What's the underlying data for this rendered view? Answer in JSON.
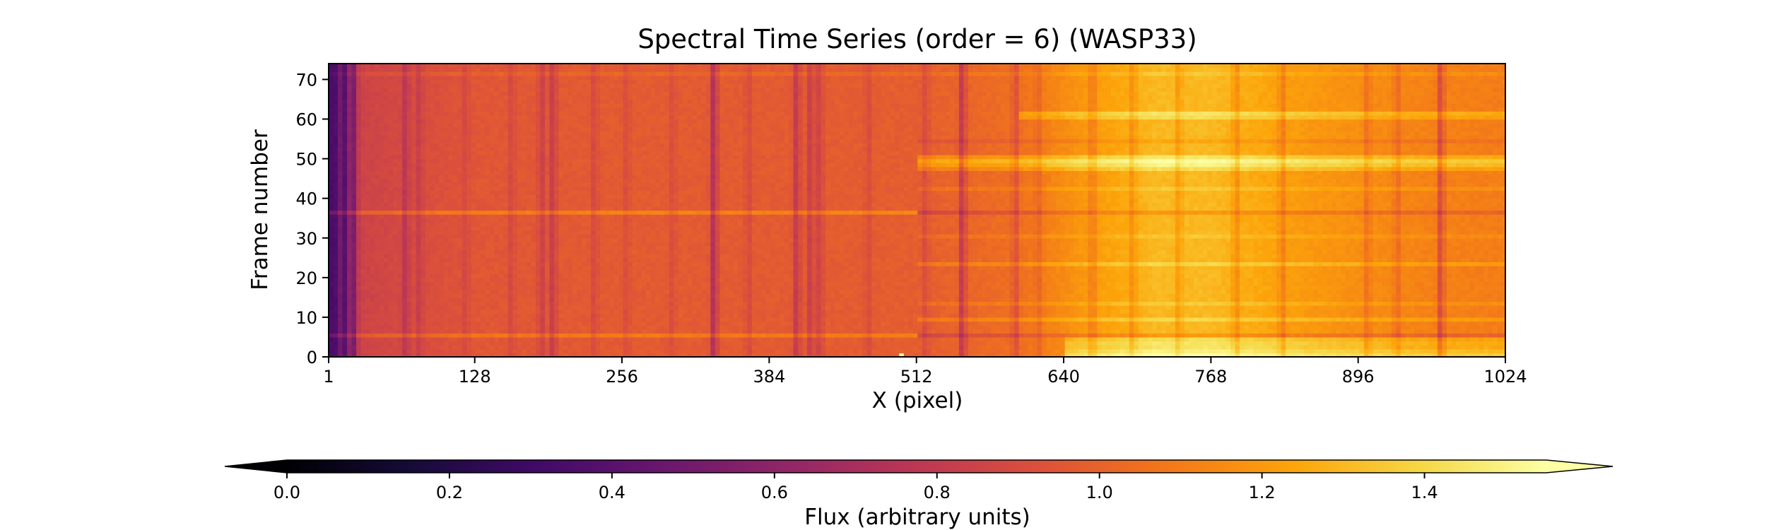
{
  "chart_data": {
    "type": "heatmap",
    "title": "Spectral Time Series (order = 6) (WASP33)",
    "xlabel": "X (pixel)",
    "ylabel": "Frame number",
    "xlim": [
      1,
      1024
    ],
    "ylim": [
      0,
      74
    ],
    "x_ticks": [
      1,
      128,
      256,
      384,
      512,
      640,
      768,
      896,
      1024
    ],
    "y_ticks": [
      0,
      10,
      20,
      30,
      40,
      50,
      60,
      70
    ],
    "colormap": "inferno",
    "colorbar": {
      "label": "Flux (arbitrary units)",
      "range": [
        0.0,
        1.55
      ],
      "ticks": [
        0.0,
        0.2,
        0.4,
        0.6,
        0.8,
        1.0,
        1.2,
        1.4
      ],
      "extend": "both",
      "orientation": "horizontal",
      "placement": "bottom"
    },
    "baseline_flux_profile": [
      {
        "x": 1,
        "flux": 0.55
      },
      {
        "x": 10,
        "flux": 0.6
      },
      {
        "x": 30,
        "flux": 0.85
      },
      {
        "x": 128,
        "flux": 0.95
      },
      {
        "x": 256,
        "flux": 0.97
      },
      {
        "x": 384,
        "flux": 0.97
      },
      {
        "x": 512,
        "flux": 0.98
      },
      {
        "x": 600,
        "flux": 1.05
      },
      {
        "x": 660,
        "flux": 1.2
      },
      {
        "x": 720,
        "flux": 1.3
      },
      {
        "x": 768,
        "flux": 1.3
      },
      {
        "x": 850,
        "flux": 1.2
      },
      {
        "x": 950,
        "flux": 1.12
      },
      {
        "x": 1024,
        "flux": 1.1
      }
    ],
    "absorption_lines": [
      {
        "x": 5,
        "depth": 0.35
      },
      {
        "x": 14,
        "depth": 0.3
      },
      {
        "x": 22,
        "depth": 0.25
      },
      {
        "x": 68,
        "depth": 0.12
      },
      {
        "x": 80,
        "depth": 0.08
      },
      {
        "x": 120,
        "depth": 0.06
      },
      {
        "x": 160,
        "depth": 0.07
      },
      {
        "x": 186,
        "depth": 0.12
      },
      {
        "x": 196,
        "depth": 0.15
      },
      {
        "x": 232,
        "depth": 0.08
      },
      {
        "x": 260,
        "depth": 0.06
      },
      {
        "x": 300,
        "depth": 0.06
      },
      {
        "x": 336,
        "depth": 0.25
      },
      {
        "x": 366,
        "depth": 0.07
      },
      {
        "x": 408,
        "depth": 0.18
      },
      {
        "x": 420,
        "depth": 0.15
      },
      {
        "x": 428,
        "depth": 0.12
      },
      {
        "x": 470,
        "depth": 0.07
      },
      {
        "x": 520,
        "depth": 0.08
      },
      {
        "x": 552,
        "depth": 0.22
      },
      {
        "x": 598,
        "depth": 0.12
      },
      {
        "x": 618,
        "depth": 0.08
      },
      {
        "x": 665,
        "depth": 0.12
      },
      {
        "x": 700,
        "depth": 0.1
      },
      {
        "x": 740,
        "depth": 0.1
      },
      {
        "x": 790,
        "depth": 0.12
      },
      {
        "x": 830,
        "depth": 0.12
      },
      {
        "x": 904,
        "depth": 0.1
      },
      {
        "x": 930,
        "depth": 0.1
      },
      {
        "x": 968,
        "depth": 0.22
      }
    ],
    "frame_variations": [
      {
        "frame": 1,
        "x_from": 640,
        "x_to": 1024,
        "delta": 0.25
      },
      {
        "frame": 2,
        "x_from": 640,
        "x_to": 1024,
        "delta": 0.2
      },
      {
        "frame": 3,
        "x_from": 640,
        "x_to": 1024,
        "delta": 0.15
      },
      {
        "frame": 4,
        "x_from": 640,
        "x_to": 1024,
        "delta": 0.15
      },
      {
        "frame": 5,
        "x_from": 640,
        "x_to": 1024,
        "delta": 0.12
      },
      {
        "frame": 6,
        "x_from": 1,
        "x_to": 512,
        "delta": 0.12
      },
      {
        "frame": 6,
        "x_from": 512,
        "x_to": 1024,
        "delta": -0.1
      },
      {
        "frame": 10,
        "x_from": 512,
        "x_to": 1024,
        "delta": 0.1
      },
      {
        "frame": 14,
        "x_from": 512,
        "x_to": 1024,
        "delta": 0.06
      },
      {
        "frame": 24,
        "x_from": 512,
        "x_to": 1024,
        "delta": 0.1
      },
      {
        "frame": 31,
        "x_from": 512,
        "x_to": 1024,
        "delta": 0.05
      },
      {
        "frame": 37,
        "x_from": 1,
        "x_to": 512,
        "delta": 0.15
      },
      {
        "frame": 37,
        "x_from": 512,
        "x_to": 1024,
        "delta": -0.1
      },
      {
        "frame": 43,
        "x_from": 512,
        "x_to": 1024,
        "delta": 0.06
      },
      {
        "frame": 48,
        "x_from": 512,
        "x_to": 1024,
        "delta": 0.12
      },
      {
        "frame": 49,
        "x_from": 512,
        "x_to": 1024,
        "delta": 0.2
      },
      {
        "frame": 50,
        "x_from": 512,
        "x_to": 1024,
        "delta": 0.25
      },
      {
        "frame": 51,
        "x_from": 512,
        "x_to": 1024,
        "delta": 0.15
      },
      {
        "frame": 55,
        "x_from": 512,
        "x_to": 1024,
        "delta": -0.05
      },
      {
        "frame": 61,
        "x_from": 600,
        "x_to": 1024,
        "delta": 0.12
      },
      {
        "frame": 62,
        "x_from": 600,
        "x_to": 1024,
        "delta": 0.15
      },
      {
        "frame": 72,
        "x_from": 1,
        "x_to": 1024,
        "delta": 0.05
      }
    ],
    "hot_pixels": [
      {
        "x": 500,
        "frame": 1,
        "flux": 1.55
      }
    ]
  }
}
